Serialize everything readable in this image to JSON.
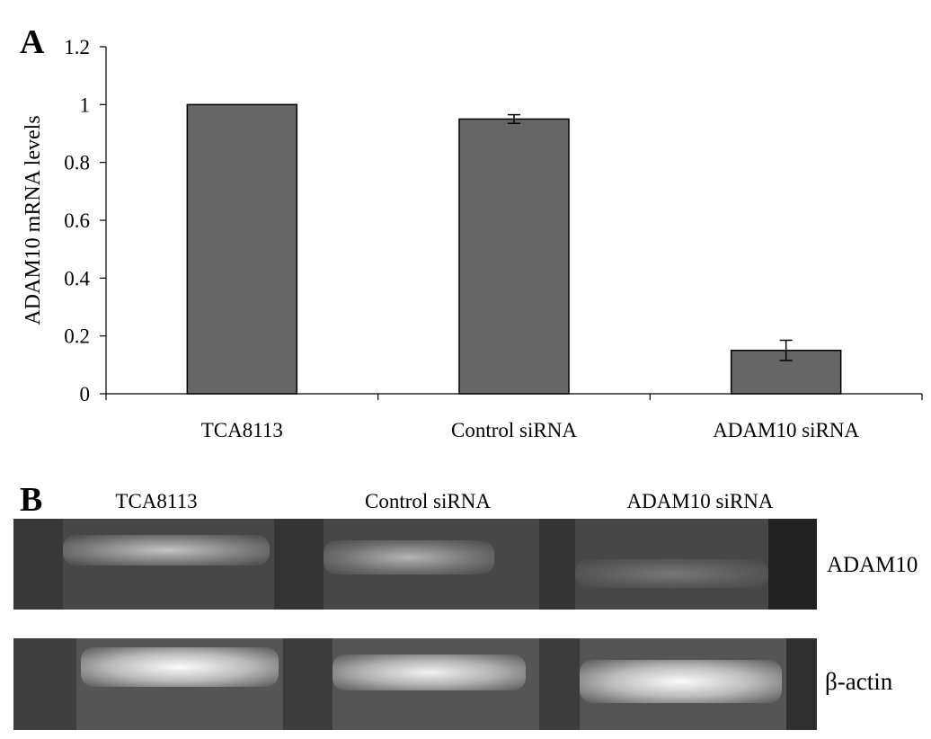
{
  "panel_a": {
    "letter": "A"
  },
  "panel_b": {
    "letter": "B",
    "lanes": [
      "TCA8113",
      "Control siRNA",
      "ADAM10 siRNA"
    ],
    "rows": [
      "ADAM10",
      "β-actin"
    ]
  },
  "chart_data": {
    "type": "bar",
    "categories": [
      "TCA8113",
      "Control siRNA",
      "ADAM10 siRNA"
    ],
    "values": [
      1.0,
      0.95,
      0.15
    ],
    "errors": [
      0,
      0.015,
      0.035
    ],
    "title": "",
    "xlabel": "",
    "ylabel": "ADAM10 mRNA levels",
    "ylim": [
      0,
      1.2
    ],
    "yticks": [
      0,
      0.2,
      0.4,
      0.6,
      0.8,
      1,
      1.2
    ],
    "ytick_labels": [
      "0",
      "0.2",
      "0.4",
      "0.6",
      "0.8",
      "1",
      "1.2"
    ],
    "grid": false,
    "bar_color": "#666666"
  }
}
